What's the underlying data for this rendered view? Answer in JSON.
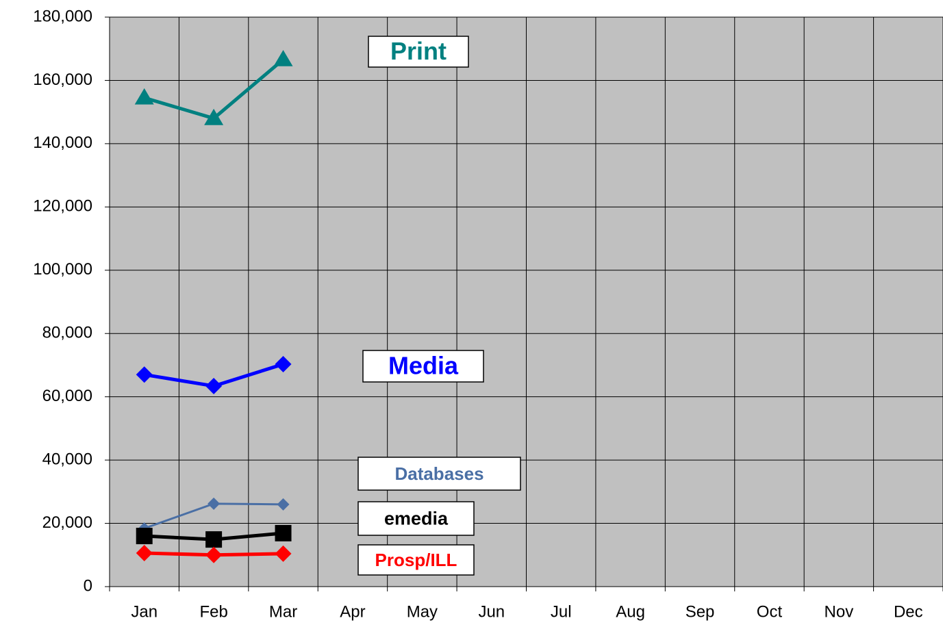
{
  "chart_data": {
    "type": "line",
    "categories": [
      "Jan",
      "Feb",
      "Mar",
      "Apr",
      "May",
      "Jun",
      "Jul",
      "Aug",
      "Sep",
      "Oct",
      "Nov",
      "Dec"
    ],
    "series": [
      {
        "name": "Print",
        "color": "#008080",
        "marker": "triangle",
        "values": [
          154500,
          148000,
          166600,
          null,
          null,
          null,
          null,
          null,
          null,
          null,
          null,
          null
        ]
      },
      {
        "name": "Media",
        "color": "#0000ff",
        "marker": "diamond",
        "values": [
          67000,
          63400,
          70300,
          null,
          null,
          null,
          null,
          null,
          null,
          null,
          null,
          null
        ]
      },
      {
        "name": "Databases",
        "color": "#4a6fa5",
        "marker": "diamond-small",
        "values": [
          18400,
          26200,
          26000,
          null,
          null,
          null,
          null,
          null,
          null,
          null,
          null,
          null
        ]
      },
      {
        "name": "emedia",
        "color": "#000000",
        "marker": "square",
        "values": [
          16000,
          14900,
          16900,
          null,
          null,
          null,
          null,
          null,
          null,
          null,
          null,
          null
        ]
      },
      {
        "name": "Prosp/ILL",
        "color": "#ff0000",
        "marker": "diamond",
        "values": [
          10600,
          10000,
          10400,
          null,
          null,
          null,
          null,
          null,
          null,
          null,
          null,
          null
        ]
      }
    ],
    "ylim": [
      0,
      180000
    ],
    "yticks": [
      0,
      {
        "value": 20000,
        "label": "20,000"
      },
      {
        "value": 40000,
        "label": "40,000"
      },
      {
        "value": 60000,
        "label": "60,000"
      },
      {
        "value": 80000,
        "label": "80,000"
      },
      {
        "value": 100000,
        "label": "100,000"
      },
      {
        "value": 120000,
        "label": "120,000"
      },
      {
        "value": 140000,
        "label": "140,000"
      },
      {
        "value": 160000,
        "label": "160,000"
      },
      {
        "value": 180000,
        "label": "180,000"
      }
    ],
    "grid": true,
    "plot_background": "#c0c0c0"
  }
}
